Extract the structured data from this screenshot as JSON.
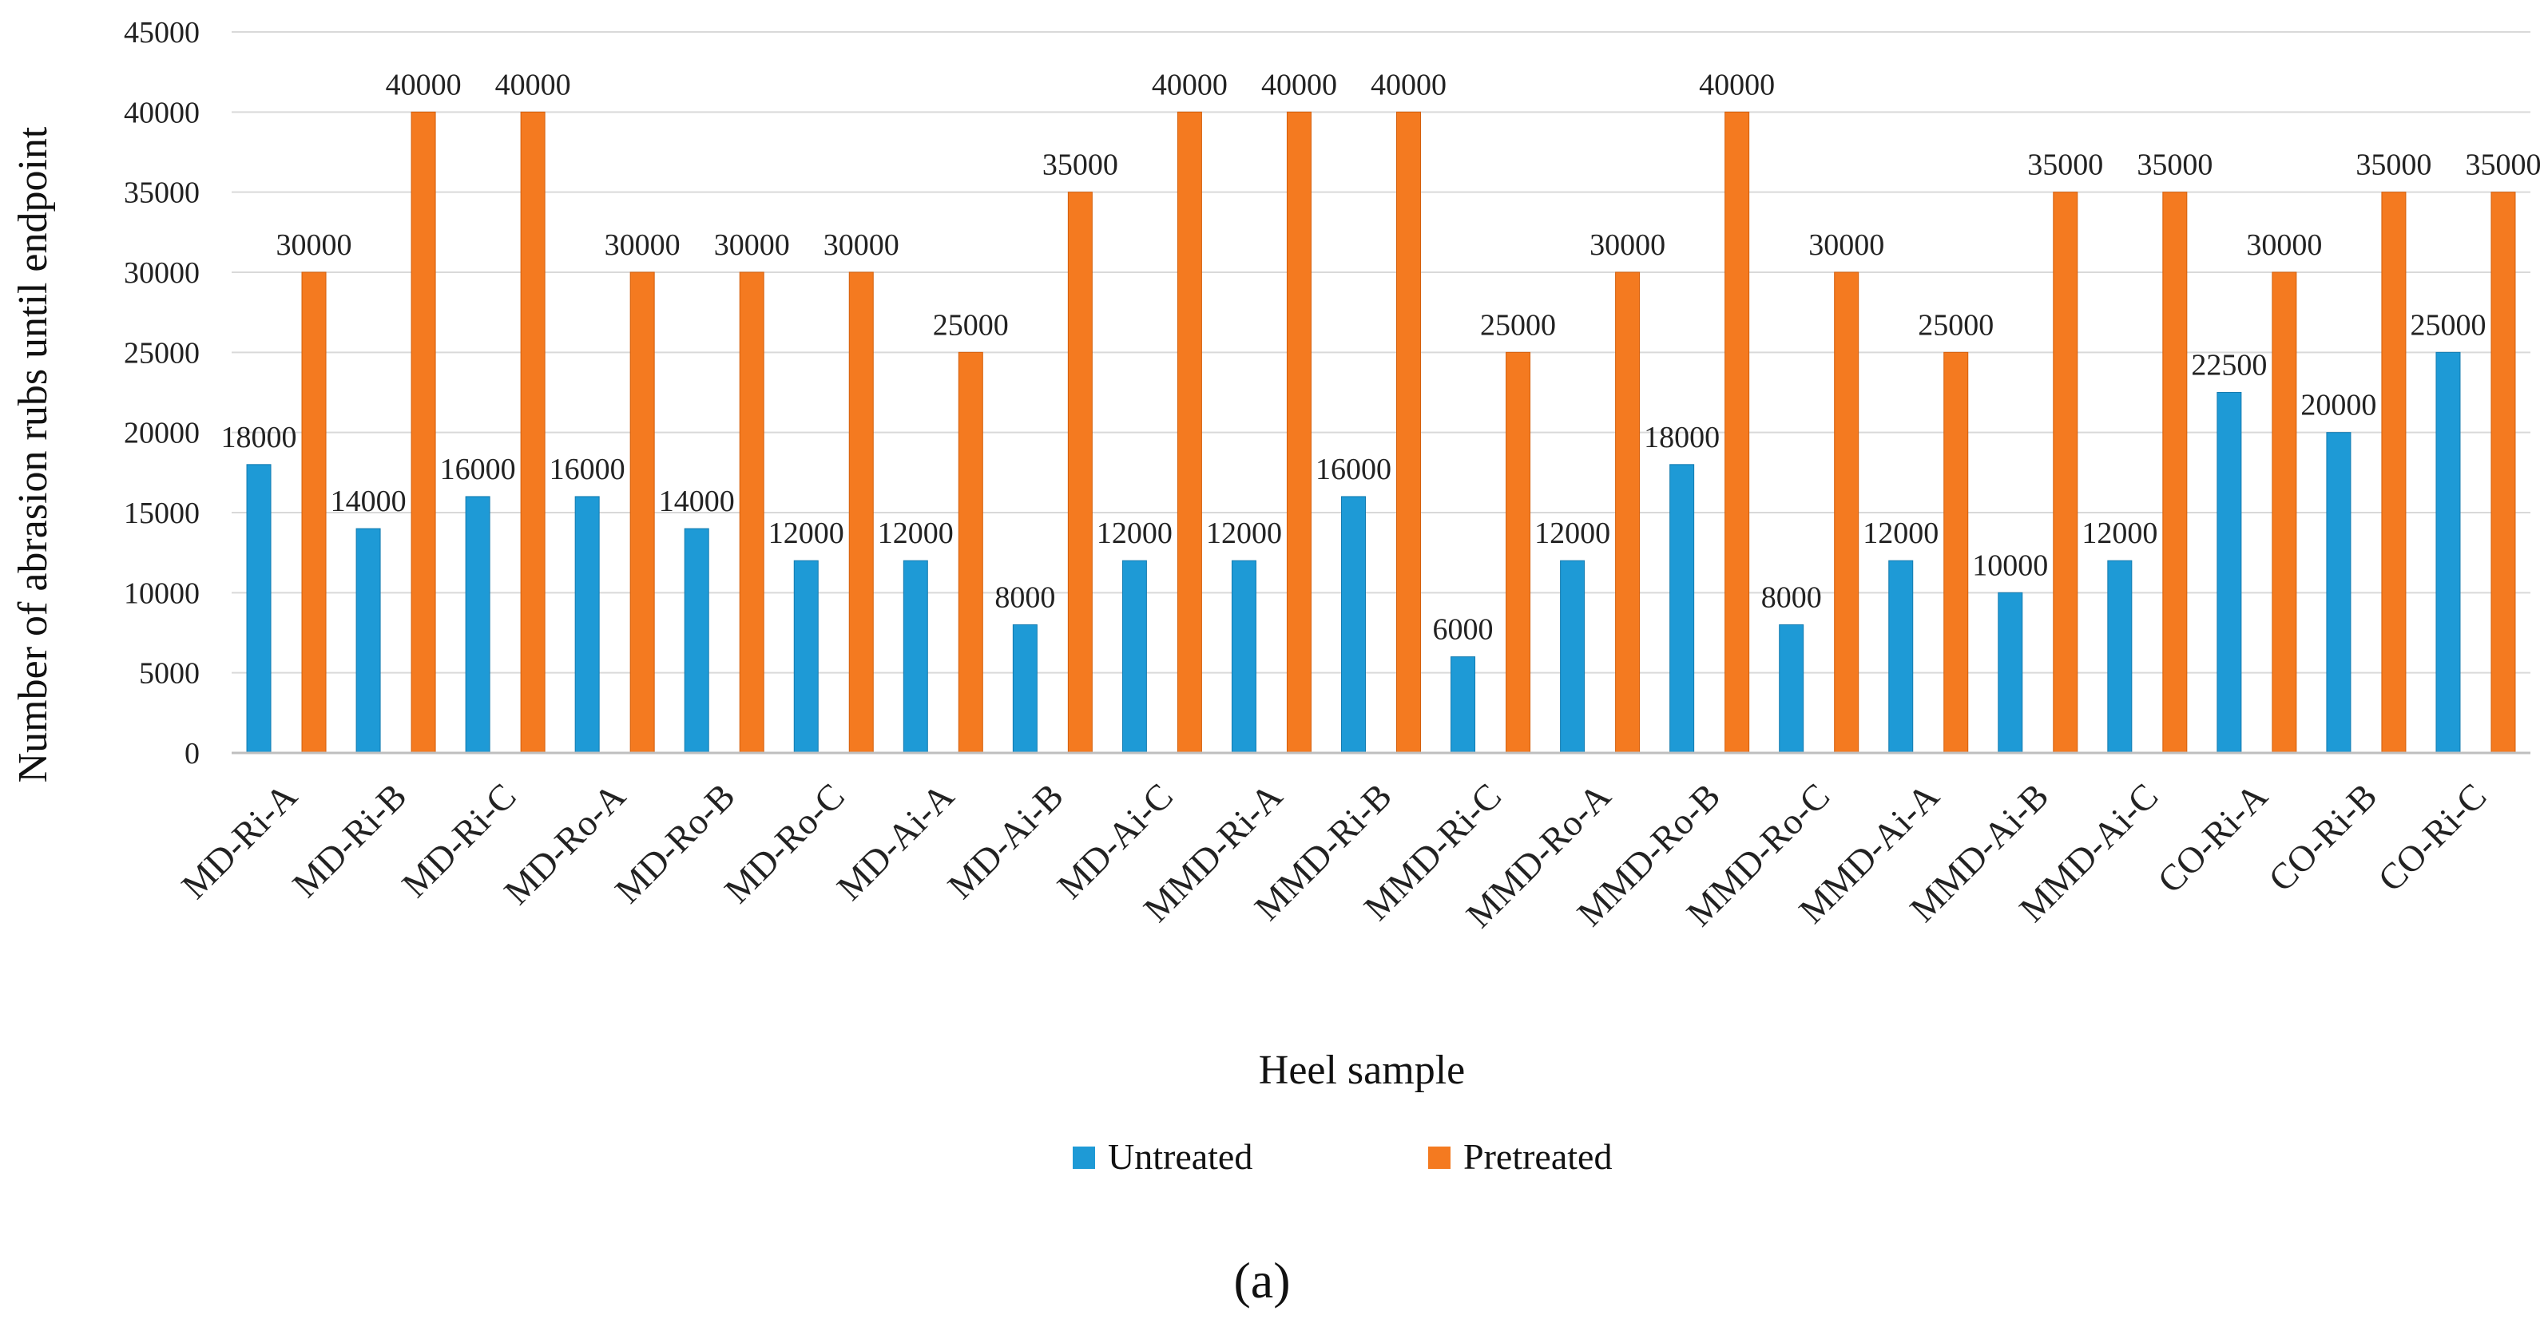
{
  "chart_data": {
    "type": "bar",
    "title": "",
    "xlabel": "Heel sample",
    "ylabel": "Number of abrasion rubs until endpoint",
    "ylim": [
      0,
      45000
    ],
    "yticks": [
      0,
      5000,
      10000,
      15000,
      20000,
      25000,
      30000,
      35000,
      40000,
      45000
    ],
    "grid": true,
    "legend_position": "bottom",
    "caption": "(a)",
    "categories": [
      "MD-Ri-A",
      "MD-Ri-B",
      "MD-Ri-C",
      "MD-Ro-A",
      "MD-Ro-B",
      "MD-Ro-C",
      "MD-Ai-A",
      "MD-Ai-B",
      "MD-Ai-C",
      "MMD-Ri-A",
      "MMD-Ri-B",
      "MMD-Ri-C",
      "MMD-Ro-A",
      "MMD-Ro-B",
      "MMD-Ro-C",
      "MMD-Ai-A",
      "MMD-Ai-B",
      "MMD-Ai-C",
      "CO-Ri-A",
      "CO-Ri-B",
      "CO-Ri-C"
    ],
    "series": [
      {
        "name": "Untreated",
        "color": "#1E9AD6",
        "values": [
          18000,
          14000,
          16000,
          16000,
          14000,
          12000,
          12000,
          8000,
          12000,
          12000,
          16000,
          6000,
          12000,
          18000,
          8000,
          12000,
          10000,
          12000,
          22500,
          20000,
          25000
        ]
      },
      {
        "name": "Pretreated",
        "color": "#F47A20",
        "values": [
          30000,
          40000,
          40000,
          30000,
          30000,
          30000,
          25000,
          35000,
          40000,
          40000,
          40000,
          25000,
          30000,
          40000,
          30000,
          25000,
          35000,
          35000,
          30000,
          35000,
          35000
        ]
      }
    ]
  }
}
